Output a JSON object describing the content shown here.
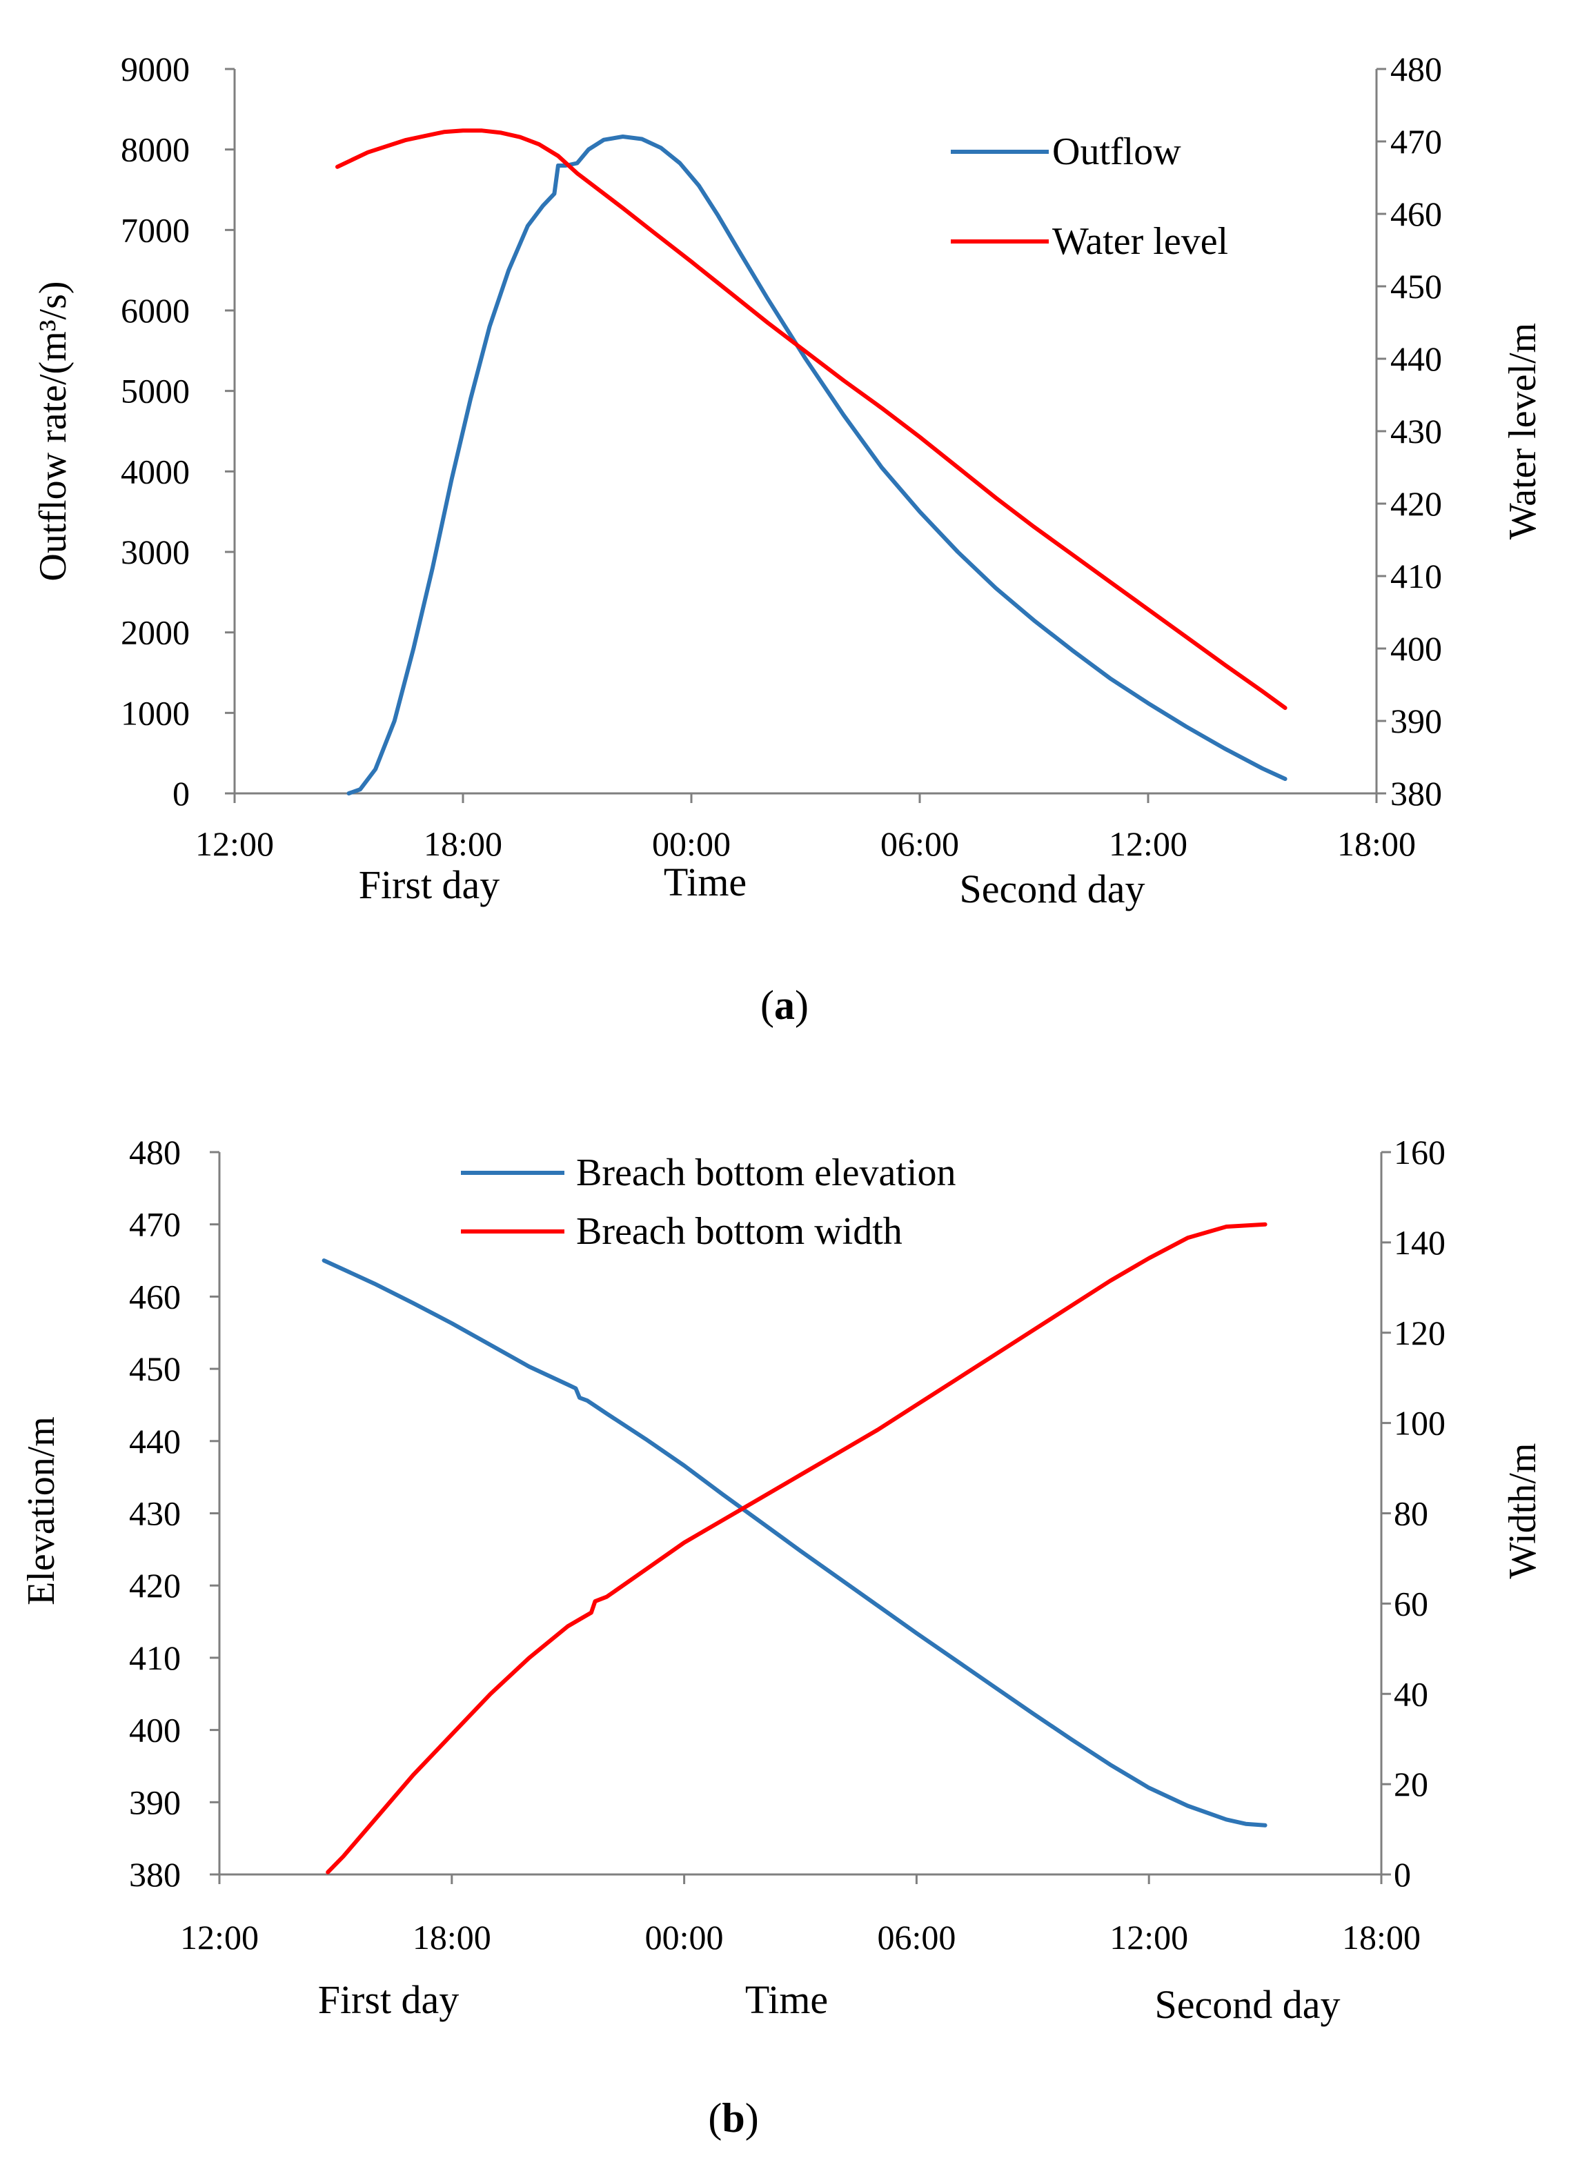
{
  "chart_data": [
    {
      "id": "a",
      "type": "line",
      "label": "a",
      "x_axis": {
        "title": "Time",
        "ticks": [
          "12:00",
          "18:00",
          "00:00",
          "06:00",
          "12:00",
          "18:00"
        ],
        "tick_values": [
          0,
          6,
          12,
          18,
          24,
          30
        ],
        "range": [
          0,
          30
        ],
        "annotations": [
          "First day",
          "Second day"
        ],
        "unit": "hours from 12:00 of first day"
      },
      "y_left": {
        "title": "Outflow rate/(m³/s)",
        "range": [
          0,
          9000
        ],
        "ticks": [
          "0",
          "1000",
          "2000",
          "3000",
          "4000",
          "5000",
          "6000",
          "7000",
          "8000",
          "9000"
        ]
      },
      "y_right": {
        "title": "Water level/m",
        "range": [
          380,
          480
        ],
        "ticks": [
          "380",
          "390",
          "400",
          "410",
          "420",
          "430",
          "440",
          "450",
          "460",
          "470",
          "480"
        ]
      },
      "legend": {
        "position": "top-right"
      },
      "series": [
        {
          "name": "Outflow",
          "axis": "left",
          "color": "#2e75b6",
          "points": [
            [
              3.0,
              0
            ],
            [
              3.3,
              50
            ],
            [
              3.7,
              300
            ],
            [
              4.2,
              900
            ],
            [
              4.7,
              1800
            ],
            [
              5.2,
              2800
            ],
            [
              5.7,
              3900
            ],
            [
              6.2,
              4900
            ],
            [
              6.7,
              5800
            ],
            [
              7.2,
              6500
            ],
            [
              7.7,
              7050
            ],
            [
              8.1,
              7300
            ],
            [
              8.4,
              7450
            ],
            [
              8.5,
              7800
            ],
            [
              8.7,
              7800
            ],
            [
              9.0,
              7830
            ],
            [
              9.3,
              8000
            ],
            [
              9.7,
              8120
            ],
            [
              10.2,
              8160
            ],
            [
              10.7,
              8130
            ],
            [
              11.2,
              8020
            ],
            [
              11.7,
              7830
            ],
            [
              12.2,
              7550
            ],
            [
              12.7,
              7180
            ],
            [
              13.3,
              6700
            ],
            [
              14.0,
              6150
            ],
            [
              15.0,
              5400
            ],
            [
              16.0,
              4700
            ],
            [
              17.0,
              4050
            ],
            [
              18.0,
              3500
            ],
            [
              19.0,
              3000
            ],
            [
              20.0,
              2550
            ],
            [
              21.0,
              2150
            ],
            [
              22.0,
              1780
            ],
            [
              23.0,
              1430
            ],
            [
              24.0,
              1120
            ],
            [
              25.0,
              830
            ],
            [
              26.0,
              560
            ],
            [
              27.0,
              310
            ],
            [
              27.6,
              180
            ]
          ]
        },
        {
          "name": "Water level",
          "axis": "right",
          "color": "#ff0000",
          "points": [
            [
              2.7,
              466.5
            ],
            [
              3.5,
              468.5
            ],
            [
              4.5,
              470.2
            ],
            [
              5.5,
              471.3
            ],
            [
              6.0,
              471.5
            ],
            [
              6.5,
              471.5
            ],
            [
              7.0,
              471.2
            ],
            [
              7.5,
              470.6
            ],
            [
              8.0,
              469.6
            ],
            [
              8.5,
              468.0
            ],
            [
              9.0,
              465.6
            ],
            [
              9.6,
              463.2
            ],
            [
              10.2,
              460.8
            ],
            [
              11.0,
              457.5
            ],
            [
              12.0,
              453.4
            ],
            [
              13.0,
              449.2
            ],
            [
              14.0,
              445.0
            ],
            [
              15.0,
              441.0
            ],
            [
              16.0,
              437.0
            ],
            [
              17.0,
              433.2
            ],
            [
              18.0,
              429.2
            ],
            [
              19.0,
              425.0
            ],
            [
              20.0,
              420.8
            ],
            [
              21.0,
              416.8
            ],
            [
              22.0,
              413.0
            ],
            [
              23.0,
              409.2
            ],
            [
              24.0,
              405.4
            ],
            [
              25.0,
              401.6
            ],
            [
              26.0,
              397.8
            ],
            [
              27.0,
              394.1
            ],
            [
              27.6,
              391.8
            ]
          ]
        }
      ]
    },
    {
      "id": "b",
      "type": "line",
      "label": "b",
      "x_axis": {
        "title": "Time",
        "ticks": [
          "12:00",
          "18:00",
          "00:00",
          "06:00",
          "12:00",
          "18:00"
        ],
        "tick_values": [
          0,
          6,
          12,
          18,
          24,
          30
        ],
        "range": [
          0,
          30
        ],
        "annotations": [
          "First day",
          "Second day"
        ],
        "unit": "hours from 12:00 of first day"
      },
      "y_left": {
        "title": "Elevation/m",
        "range": [
          380,
          480
        ],
        "ticks": [
          "380",
          "390",
          "400",
          "410",
          "420",
          "430",
          "440",
          "450",
          "460",
          "470",
          "480"
        ]
      },
      "y_right": {
        "title": "Width/m",
        "range": [
          0,
          160
        ],
        "ticks": [
          "0",
          "20",
          "40",
          "60",
          "80",
          "100",
          "120",
          "140",
          "160"
        ]
      },
      "legend": {
        "position": "top-center"
      },
      "series": [
        {
          "name": "Breach bottom elevation",
          "axis": "left",
          "color": "#2e75b6",
          "points": [
            [
              2.7,
              465.0
            ],
            [
              4.0,
              461.8
            ],
            [
              5.0,
              459.1
            ],
            [
              6.0,
              456.3
            ],
            [
              7.0,
              453.3
            ],
            [
              8.0,
              450.3
            ],
            [
              9.0,
              447.8
            ],
            [
              9.2,
              447.3
            ],
            [
              9.3,
              446.0
            ],
            [
              9.5,
              445.6
            ],
            [
              10.0,
              443.8
            ],
            [
              11.0,
              440.3
            ],
            [
              12.0,
              436.6
            ],
            [
              13.0,
              432.6
            ],
            [
              14.0,
              428.7
            ],
            [
              15.0,
              424.8
            ],
            [
              16.0,
              421.0
            ],
            [
              17.0,
              417.2
            ],
            [
              18.0,
              413.4
            ],
            [
              19.0,
              409.7
            ],
            [
              20.0,
              406.0
            ],
            [
              21.0,
              402.3
            ],
            [
              22.0,
              398.7
            ],
            [
              23.0,
              395.2
            ],
            [
              24.0,
              392.0
            ],
            [
              25.0,
              389.5
            ],
            [
              26.0,
              387.6
            ],
            [
              26.5,
              387.0
            ],
            [
              27.0,
              386.8
            ]
          ]
        },
        {
          "name": "Breach bottom width",
          "axis": "right",
          "color": "#ff0000",
          "points": [
            [
              2.8,
              0.5
            ],
            [
              3.2,
              4
            ],
            [
              4.0,
              12
            ],
            [
              5.0,
              22
            ],
            [
              6.0,
              31
            ],
            [
              7.0,
              40
            ],
            [
              8.0,
              48
            ],
            [
              9.0,
              55
            ],
            [
              9.4,
              57
            ],
            [
              9.6,
              58
            ],
            [
              9.7,
              60.5
            ],
            [
              10.0,
              61.5
            ],
            [
              11.0,
              67.5
            ],
            [
              12.0,
              73.5
            ],
            [
              13.0,
              78.5
            ],
            [
              14.0,
              83.5
            ],
            [
              15.0,
              88.5
            ],
            [
              16.0,
              93.5
            ],
            [
              17.0,
              98.5
            ],
            [
              18.0,
              104
            ],
            [
              19.0,
              109.5
            ],
            [
              20.0,
              115
            ],
            [
              21.0,
              120.5
            ],
            [
              22.0,
              126
            ],
            [
              23.0,
              131.5
            ],
            [
              24.0,
              136.5
            ],
            [
              25.0,
              141
            ],
            [
              26.0,
              143.5
            ],
            [
              27.0,
              144
            ]
          ]
        }
      ]
    }
  ]
}
